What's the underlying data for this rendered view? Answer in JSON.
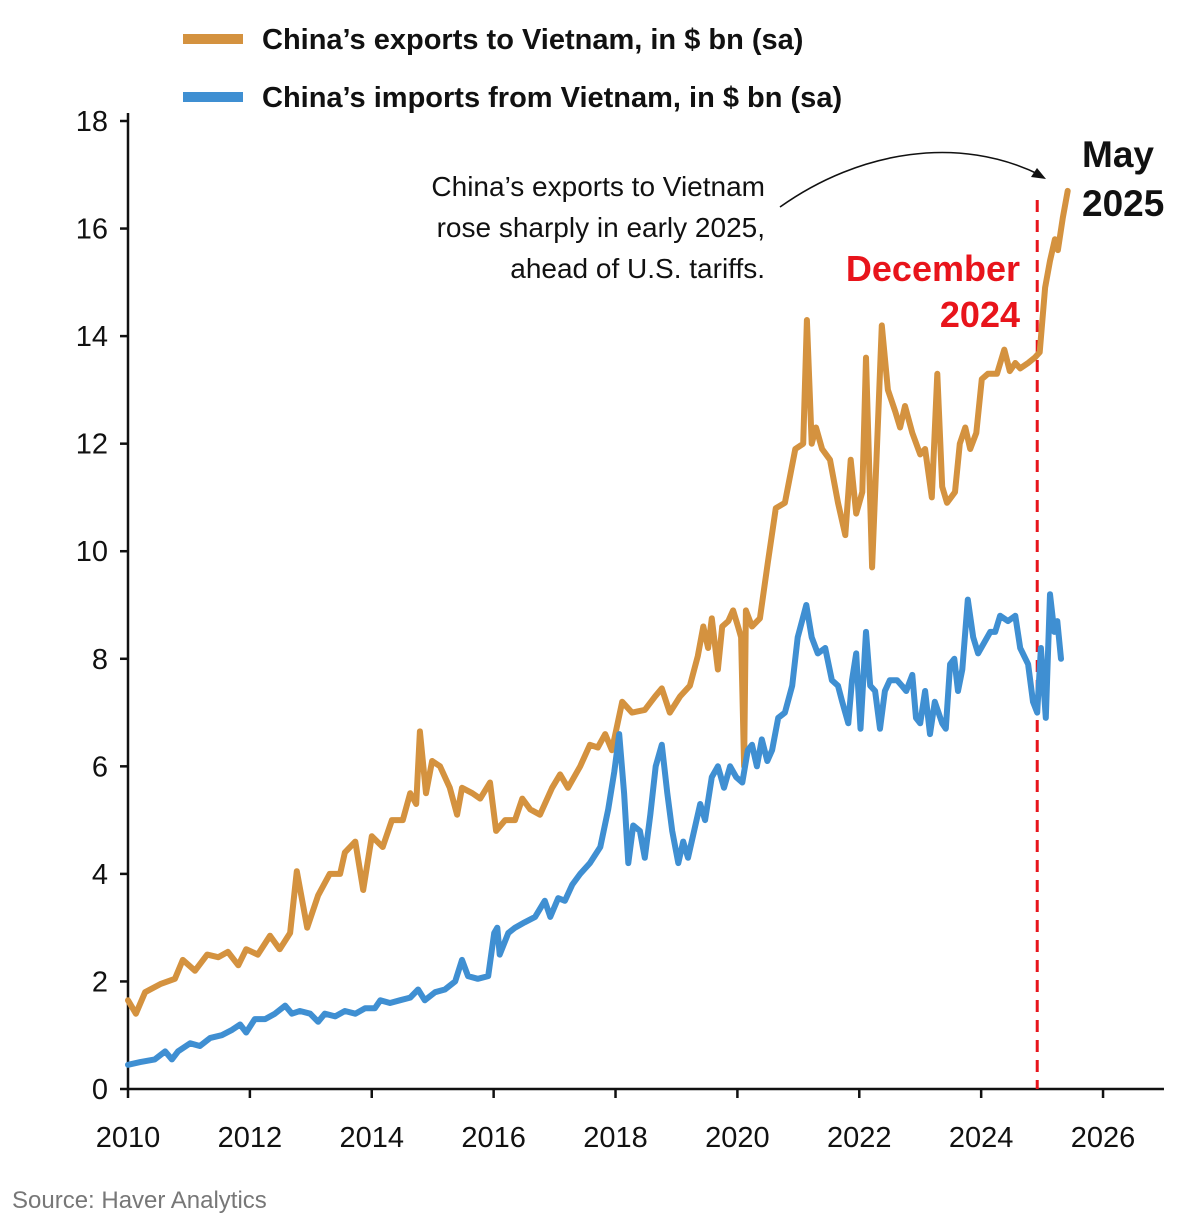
{
  "chart_data": {
    "type": "line",
    "xlabel": "",
    "ylabel": "",
    "xlim": [
      2010,
      2027
    ],
    "ylim": [
      0,
      18
    ],
    "xticks": [
      "2010",
      "2012",
      "2014",
      "2016",
      "2018",
      "2020",
      "2022",
      "2024",
      "2026"
    ],
    "yticks": [
      "0",
      "2",
      "4",
      "6",
      "8",
      "10",
      "12",
      "14",
      "16",
      "18"
    ],
    "grid": false,
    "legend_placement": "top",
    "series": [
      {
        "name": "China’s exports to Vietnam, in $ bn (sa)",
        "color": "#D4923F",
        "points": [
          [
            2010.0,
            1.65
          ],
          [
            2010.13,
            1.4
          ],
          [
            2010.28,
            1.8
          ],
          [
            2010.53,
            1.95
          ],
          [
            2010.77,
            2.05
          ],
          [
            2010.9,
            2.4
          ],
          [
            2011.1,
            2.2
          ],
          [
            2011.3,
            2.5
          ],
          [
            2011.48,
            2.45
          ],
          [
            2011.64,
            2.55
          ],
          [
            2011.81,
            2.3
          ],
          [
            2011.94,
            2.6
          ],
          [
            2012.13,
            2.5
          ],
          [
            2012.33,
            2.85
          ],
          [
            2012.49,
            2.6
          ],
          [
            2012.66,
            2.9
          ],
          [
            2012.77,
            4.05
          ],
          [
            2012.94,
            3.0
          ],
          [
            2013.12,
            3.6
          ],
          [
            2013.31,
            4.0
          ],
          [
            2013.48,
            4.0
          ],
          [
            2013.56,
            4.4
          ],
          [
            2013.73,
            4.6
          ],
          [
            2013.86,
            3.7
          ],
          [
            2014.0,
            4.7
          ],
          [
            2014.18,
            4.5
          ],
          [
            2014.33,
            5.0
          ],
          [
            2014.51,
            5.0
          ],
          [
            2014.63,
            5.5
          ],
          [
            2014.73,
            5.3
          ],
          [
            2014.79,
            6.65
          ],
          [
            2014.89,
            5.5
          ],
          [
            2014.99,
            6.1
          ],
          [
            2015.12,
            6.0
          ],
          [
            2015.28,
            5.6
          ],
          [
            2015.4,
            5.1
          ],
          [
            2015.48,
            5.6
          ],
          [
            2015.65,
            5.5
          ],
          [
            2015.78,
            5.4
          ],
          [
            2015.94,
            5.7
          ],
          [
            2016.04,
            4.8
          ],
          [
            2016.19,
            5.0
          ],
          [
            2016.35,
            5.0
          ],
          [
            2016.47,
            5.4
          ],
          [
            2016.6,
            5.2
          ],
          [
            2016.76,
            5.1
          ],
          [
            2016.96,
            5.6
          ],
          [
            2017.09,
            5.85
          ],
          [
            2017.22,
            5.6
          ],
          [
            2017.42,
            6.0
          ],
          [
            2017.58,
            6.4
          ],
          [
            2017.71,
            6.35
          ],
          [
            2017.83,
            6.6
          ],
          [
            2017.94,
            6.3
          ],
          [
            2018.11,
            7.2
          ],
          [
            2018.27,
            7.0
          ],
          [
            2018.48,
            7.05
          ],
          [
            2018.65,
            7.3
          ],
          [
            2018.76,
            7.45
          ],
          [
            2018.89,
            7.0
          ],
          [
            2019.06,
            7.3
          ],
          [
            2019.22,
            7.5
          ],
          [
            2019.35,
            8.05
          ],
          [
            2019.44,
            8.6
          ],
          [
            2019.52,
            8.2
          ],
          [
            2019.58,
            8.75
          ],
          [
            2019.68,
            7.8
          ],
          [
            2019.75,
            8.6
          ],
          [
            2019.85,
            8.7
          ],
          [
            2019.93,
            8.9
          ],
          [
            2020.01,
            8.6
          ],
          [
            2020.06,
            8.4
          ],
          [
            2020.11,
            6.0
          ],
          [
            2020.14,
            8.9
          ],
          [
            2020.24,
            8.6
          ],
          [
            2020.37,
            8.75
          ],
          [
            2020.5,
            9.8
          ],
          [
            2020.63,
            10.8
          ],
          [
            2020.78,
            10.9
          ],
          [
            2020.95,
            11.9
          ],
          [
            2021.08,
            12.0
          ],
          [
            2021.14,
            14.3
          ],
          [
            2021.22,
            12.0
          ],
          [
            2021.29,
            12.3
          ],
          [
            2021.39,
            11.9
          ],
          [
            2021.52,
            11.7
          ],
          [
            2021.65,
            10.9
          ],
          [
            2021.77,
            10.3
          ],
          [
            2021.86,
            11.7
          ],
          [
            2021.95,
            10.7
          ],
          [
            2022.05,
            11.1
          ],
          [
            2022.11,
            13.6
          ],
          [
            2022.21,
            9.7
          ],
          [
            2022.31,
            12.5
          ],
          [
            2022.37,
            14.2
          ],
          [
            2022.47,
            13.0
          ],
          [
            2022.59,
            12.6
          ],
          [
            2022.67,
            12.3
          ],
          [
            2022.75,
            12.7
          ],
          [
            2022.87,
            12.2
          ],
          [
            2023.0,
            11.8
          ],
          [
            2023.08,
            11.9
          ],
          [
            2023.19,
            11.0
          ],
          [
            2023.28,
            13.3
          ],
          [
            2023.36,
            11.2
          ],
          [
            2023.44,
            10.9
          ],
          [
            2023.57,
            11.1
          ],
          [
            2023.65,
            12.0
          ],
          [
            2023.74,
            12.3
          ],
          [
            2023.82,
            11.9
          ],
          [
            2023.92,
            12.2
          ],
          [
            2024.01,
            13.2
          ],
          [
            2024.11,
            13.3
          ],
          [
            2024.26,
            13.3
          ],
          [
            2024.38,
            13.75
          ],
          [
            2024.47,
            13.35
          ],
          [
            2024.56,
            13.5
          ],
          [
            2024.64,
            13.4
          ],
          [
            2024.77,
            13.5
          ],
          [
            2024.88,
            13.6
          ],
          [
            2024.96,
            13.7
          ],
          [
            2025.05,
            14.9
          ],
          [
            2025.13,
            15.4
          ],
          [
            2025.21,
            15.8
          ],
          [
            2025.26,
            15.6
          ],
          [
            2025.34,
            16.2
          ],
          [
            2025.42,
            16.7
          ]
        ]
      },
      {
        "name": "China’s imports from Vietnam, in $ bn (sa)",
        "color": "#3F8FD2",
        "points": [
          [
            2010.0,
            0.45
          ],
          [
            2010.2,
            0.5
          ],
          [
            2010.44,
            0.55
          ],
          [
            2010.61,
            0.7
          ],
          [
            2010.72,
            0.55
          ],
          [
            2010.82,
            0.7
          ],
          [
            2011.02,
            0.85
          ],
          [
            2011.18,
            0.8
          ],
          [
            2011.35,
            0.95
          ],
          [
            2011.54,
            1.0
          ],
          [
            2011.71,
            1.1
          ],
          [
            2011.84,
            1.2
          ],
          [
            2011.94,
            1.05
          ],
          [
            2012.08,
            1.3
          ],
          [
            2012.25,
            1.3
          ],
          [
            2012.41,
            1.4
          ],
          [
            2012.58,
            1.55
          ],
          [
            2012.69,
            1.4
          ],
          [
            2012.82,
            1.45
          ],
          [
            2012.99,
            1.4
          ],
          [
            2013.12,
            1.25
          ],
          [
            2013.23,
            1.4
          ],
          [
            2013.4,
            1.35
          ],
          [
            2013.56,
            1.45
          ],
          [
            2013.73,
            1.4
          ],
          [
            2013.89,
            1.5
          ],
          [
            2014.05,
            1.5
          ],
          [
            2014.14,
            1.65
          ],
          [
            2014.3,
            1.6
          ],
          [
            2014.46,
            1.65
          ],
          [
            2014.63,
            1.7
          ],
          [
            2014.76,
            1.85
          ],
          [
            2014.87,
            1.65
          ],
          [
            2015.04,
            1.8
          ],
          [
            2015.2,
            1.85
          ],
          [
            2015.37,
            2.0
          ],
          [
            2015.48,
            2.4
          ],
          [
            2015.58,
            2.1
          ],
          [
            2015.74,
            2.05
          ],
          [
            2015.91,
            2.1
          ],
          [
            2016.01,
            2.9
          ],
          [
            2016.06,
            3.0
          ],
          [
            2016.1,
            2.5
          ],
          [
            2016.24,
            2.9
          ],
          [
            2016.35,
            3.0
          ],
          [
            2016.51,
            3.1
          ],
          [
            2016.68,
            3.2
          ],
          [
            2016.84,
            3.5
          ],
          [
            2016.93,
            3.2
          ],
          [
            2017.06,
            3.55
          ],
          [
            2017.17,
            3.5
          ],
          [
            2017.29,
            3.8
          ],
          [
            2017.42,
            4.0
          ],
          [
            2017.58,
            4.2
          ],
          [
            2017.75,
            4.5
          ],
          [
            2017.88,
            5.2
          ],
          [
            2017.98,
            5.9
          ],
          [
            2018.06,
            6.6
          ],
          [
            2018.14,
            5.5
          ],
          [
            2018.21,
            4.2
          ],
          [
            2018.29,
            4.9
          ],
          [
            2018.4,
            4.8
          ],
          [
            2018.48,
            4.3
          ],
          [
            2018.57,
            5.1
          ],
          [
            2018.66,
            6.0
          ],
          [
            2018.76,
            6.4
          ],
          [
            2018.85,
            5.5
          ],
          [
            2018.93,
            4.8
          ],
          [
            2019.03,
            4.2
          ],
          [
            2019.11,
            4.6
          ],
          [
            2019.19,
            4.3
          ],
          [
            2019.29,
            4.8
          ],
          [
            2019.39,
            5.3
          ],
          [
            2019.47,
            5.0
          ],
          [
            2019.58,
            5.8
          ],
          [
            2019.68,
            6.0
          ],
          [
            2019.78,
            5.6
          ],
          [
            2019.88,
            6.0
          ],
          [
            2019.98,
            5.8
          ],
          [
            2020.08,
            5.7
          ],
          [
            2020.17,
            6.3
          ],
          [
            2020.24,
            6.4
          ],
          [
            2020.32,
            6.0
          ],
          [
            2020.4,
            6.5
          ],
          [
            2020.49,
            6.1
          ],
          [
            2020.57,
            6.3
          ],
          [
            2020.67,
            6.9
          ],
          [
            2020.78,
            7.0
          ],
          [
            2020.9,
            7.5
          ],
          [
            2020.99,
            8.4
          ],
          [
            2021.13,
            9.0
          ],
          [
            2021.22,
            8.4
          ],
          [
            2021.32,
            8.1
          ],
          [
            2021.44,
            8.2
          ],
          [
            2021.55,
            7.6
          ],
          [
            2021.65,
            7.5
          ],
          [
            2021.72,
            7.2
          ],
          [
            2021.82,
            6.8
          ],
          [
            2021.88,
            7.6
          ],
          [
            2021.95,
            8.1
          ],
          [
            2022.02,
            6.7
          ],
          [
            2022.11,
            8.5
          ],
          [
            2022.18,
            7.5
          ],
          [
            2022.26,
            7.4
          ],
          [
            2022.34,
            6.7
          ],
          [
            2022.42,
            7.4
          ],
          [
            2022.5,
            7.6
          ],
          [
            2022.62,
            7.6
          ],
          [
            2022.7,
            7.5
          ],
          [
            2022.77,
            7.4
          ],
          [
            2022.87,
            7.7
          ],
          [
            2022.93,
            6.9
          ],
          [
            2023.0,
            6.8
          ],
          [
            2023.08,
            7.4
          ],
          [
            2023.16,
            6.6
          ],
          [
            2023.24,
            7.2
          ],
          [
            2023.36,
            6.8
          ],
          [
            2023.42,
            6.7
          ],
          [
            2023.49,
            7.9
          ],
          [
            2023.56,
            8.0
          ],
          [
            2023.62,
            7.4
          ],
          [
            2023.69,
            7.8
          ],
          [
            2023.78,
            9.1
          ],
          [
            2023.87,
            8.4
          ],
          [
            2023.95,
            8.1
          ],
          [
            2024.05,
            8.3
          ],
          [
            2024.15,
            8.5
          ],
          [
            2024.23,
            8.5
          ],
          [
            2024.31,
            8.8
          ],
          [
            2024.44,
            8.7
          ],
          [
            2024.56,
            8.8
          ],
          [
            2024.64,
            8.2
          ],
          [
            2024.77,
            7.9
          ],
          [
            2024.85,
            7.2
          ],
          [
            2024.92,
            7.0
          ],
          [
            2024.98,
            8.2
          ],
          [
            2025.06,
            6.9
          ],
          [
            2025.13,
            9.2
          ],
          [
            2025.2,
            8.5
          ],
          [
            2025.25,
            8.7
          ],
          [
            2025.31,
            8.0
          ]
        ]
      }
    ],
    "annotations": {
      "note_lines": [
        "China’s exports to Vietnam",
        "rose sharply in early 2025,",
        "ahead of U.S. tariffs."
      ],
      "endpoint_lines": [
        "May",
        "2025"
      ],
      "marker_lines": [
        "December",
        "2024"
      ],
      "marker_x": 2024.92,
      "marker_color": "#E8141B"
    },
    "source": "Source: Haver Analytics"
  }
}
